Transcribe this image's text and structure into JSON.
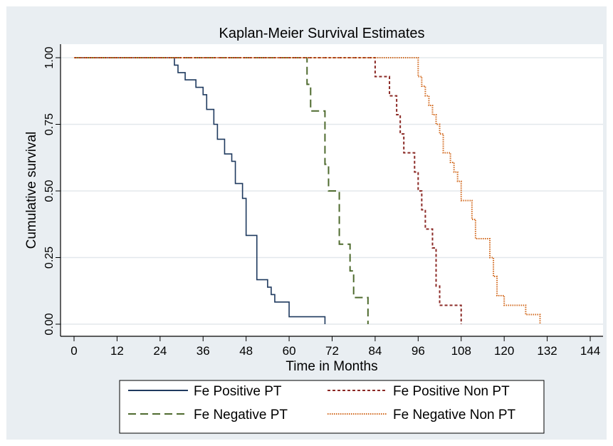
{
  "chart_data": {
    "type": "line",
    "step": true,
    "title": "Kaplan-Meier Survival Estimates",
    "xlabel": "Time in Months",
    "ylabel": "Cumulative survival",
    "xlim": [
      0,
      144
    ],
    "ylim": [
      0,
      1
    ],
    "xticks": [
      "0",
      "12",
      "24",
      "36",
      "48",
      "60",
      "72",
      "84",
      "96",
      "108",
      "120",
      "132",
      "144"
    ],
    "yticks": [
      "0.00",
      "0.25",
      "0.50",
      "0.75",
      "1.00"
    ],
    "grid": true,
    "legend_position": "bottom",
    "series": [
      {
        "name": "Fe Positive PT",
        "color": "#1f3a5f",
        "dash": "solid",
        "x": [
          0,
          28,
          29,
          31,
          34,
          36,
          37,
          39,
          40,
          42,
          44,
          45,
          47,
          48,
          51,
          54,
          55,
          56,
          58,
          60,
          70
        ],
        "y": [
          1.0,
          0.972,
          0.944,
          0.917,
          0.889,
          0.861,
          0.806,
          0.75,
          0.694,
          0.639,
          0.611,
          0.528,
          0.472,
          0.333,
          0.167,
          0.139,
          0.111,
          0.083,
          0.083,
          0.028,
          0.0
        ]
      },
      {
        "name": "Fe Negative PT",
        "color": "#4f6b2f",
        "dash": "long-dash",
        "x": [
          0,
          65,
          66,
          67,
          70,
          71,
          74,
          77,
          78,
          82
        ],
        "y": [
          1.0,
          0.9,
          0.8,
          0.8,
          0.6,
          0.5,
          0.3,
          0.2,
          0.1,
          0.0
        ]
      },
      {
        "name": "Fe Positive Non PT",
        "color": "#8b2a26",
        "dash": "short-dash",
        "x": [
          0,
          84,
          88,
          90,
          91,
          92,
          95,
          96,
          97,
          98,
          100,
          101,
          102,
          108
        ],
        "y": [
          1.0,
          0.929,
          0.857,
          0.786,
          0.714,
          0.643,
          0.571,
          0.5,
          0.429,
          0.357,
          0.286,
          0.143,
          0.071,
          0.0
        ]
      },
      {
        "name": "Fe Negative Non PT",
        "color": "#d2691e",
        "dash": "dot",
        "x": [
          0,
          96,
          97,
          98,
          99,
          100,
          101,
          102,
          103,
          105,
          106,
          107,
          108,
          111,
          112,
          113,
          116,
          117,
          118,
          119,
          120,
          126,
          130
        ],
        "y": [
          1.0,
          0.929,
          0.893,
          0.857,
          0.821,
          0.786,
          0.75,
          0.714,
          0.643,
          0.607,
          0.571,
          0.536,
          0.464,
          0.393,
          0.321,
          0.321,
          0.25,
          0.179,
          0.107,
          0.107,
          0.071,
          0.036,
          0.0
        ]
      }
    ]
  }
}
